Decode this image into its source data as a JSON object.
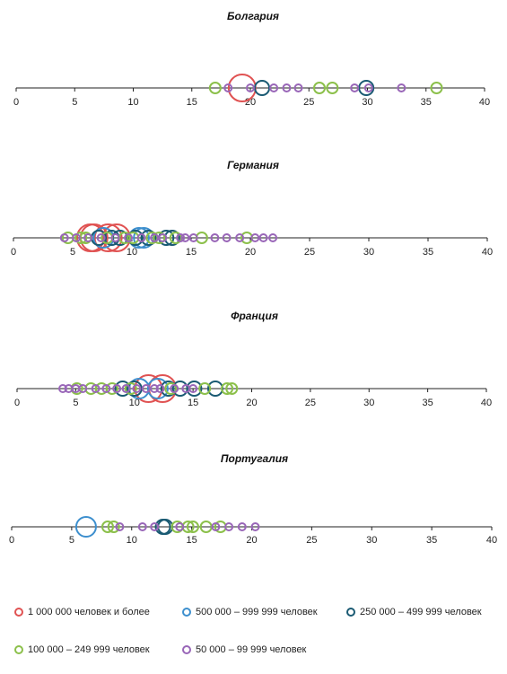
{
  "colors": {
    "c1m": "#e05252",
    "c500k": "#3d8fce",
    "c250k": "#1a5a73",
    "c100k": "#8cc04b",
    "c50k": "#9966b8"
  },
  "legend": [
    {
      "label": "1 000 000 человек и более",
      "color_key": "c1m"
    },
    {
      "label": "500 000 – 999 999 человек",
      "color_key": "c500k"
    },
    {
      "label": "250 000 – 499 999 человек",
      "color_key": "c250k"
    },
    {
      "label": "100 000 – 249 999 человек",
      "color_key": "c100k"
    },
    {
      "label": "50 000 – 99 999 человек",
      "color_key": "c50k"
    }
  ],
  "chart_data": [
    {
      "type": "scatter",
      "title": "Болгария",
      "xlim": [
        0,
        40
      ],
      "xticks": [
        0,
        5,
        10,
        15,
        20,
        25,
        30,
        35,
        40
      ],
      "points": [
        {
          "x": 19.3,
          "size_class": "c1m"
        },
        {
          "x": 21.0,
          "size_class": "c250k"
        },
        {
          "x": 29.9,
          "size_class": "c250k"
        },
        {
          "x": 17.0,
          "size_class": "c100k"
        },
        {
          "x": 25.9,
          "size_class": "c100k"
        },
        {
          "x": 27.0,
          "size_class": "c100k"
        },
        {
          "x": 35.9,
          "size_class": "c100k"
        },
        {
          "x": 18.1,
          "size_class": "c50k"
        },
        {
          "x": 20.0,
          "size_class": "c50k"
        },
        {
          "x": 22.0,
          "size_class": "c50k"
        },
        {
          "x": 23.1,
          "size_class": "c50k"
        },
        {
          "x": 24.1,
          "size_class": "c50k"
        },
        {
          "x": 28.9,
          "size_class": "c50k"
        },
        {
          "x": 30.1,
          "size_class": "c50k"
        },
        {
          "x": 32.9,
          "size_class": "c50k"
        }
      ]
    },
    {
      "type": "scatter",
      "title": "Германия",
      "xlim": [
        0,
        40
      ],
      "xticks": [
        0,
        5,
        10,
        15,
        20,
        25,
        30,
        35,
        40
      ],
      "points": [
        {
          "x": 6.5,
          "size_class": "c1m"
        },
        {
          "x": 6.8,
          "size_class": "c1m"
        },
        {
          "x": 8.0,
          "size_class": "c1m"
        },
        {
          "x": 8.7,
          "size_class": "c1m"
        },
        {
          "x": 7.6,
          "size_class": "c500k"
        },
        {
          "x": 10.6,
          "size_class": "c500k"
        },
        {
          "x": 11.0,
          "size_class": "c500k"
        },
        {
          "x": 7.2,
          "size_class": "c250k"
        },
        {
          "x": 8.3,
          "size_class": "c250k"
        },
        {
          "x": 9.0,
          "size_class": "c250k"
        },
        {
          "x": 10.3,
          "size_class": "c250k"
        },
        {
          "x": 11.4,
          "size_class": "c250k"
        },
        {
          "x": 12.9,
          "size_class": "c250k"
        },
        {
          "x": 13.4,
          "size_class": "c250k"
        },
        {
          "x": 4.6,
          "size_class": "c100k"
        },
        {
          "x": 5.7,
          "size_class": "c100k"
        },
        {
          "x": 6.1,
          "size_class": "c100k"
        },
        {
          "x": 7.9,
          "size_class": "c100k"
        },
        {
          "x": 9.4,
          "size_class": "c100k"
        },
        {
          "x": 10.1,
          "size_class": "c100k"
        },
        {
          "x": 11.7,
          "size_class": "c100k"
        },
        {
          "x": 12.3,
          "size_class": "c100k"
        },
        {
          "x": 13.7,
          "size_class": "c100k"
        },
        {
          "x": 15.9,
          "size_class": "c100k"
        },
        {
          "x": 19.7,
          "size_class": "c100k"
        },
        {
          "x": 4.3,
          "size_class": "c50k"
        },
        {
          "x": 5.3,
          "size_class": "c50k"
        },
        {
          "x": 6.3,
          "size_class": "c50k"
        },
        {
          "x": 7.4,
          "size_class": "c50k"
        },
        {
          "x": 8.6,
          "size_class": "c50k"
        },
        {
          "x": 9.7,
          "size_class": "c50k"
        },
        {
          "x": 10.8,
          "size_class": "c50k"
        },
        {
          "x": 11.9,
          "size_class": "c50k"
        },
        {
          "x": 12.6,
          "size_class": "c50k"
        },
        {
          "x": 14.1,
          "size_class": "c50k"
        },
        {
          "x": 14.5,
          "size_class": "c50k"
        },
        {
          "x": 15.2,
          "size_class": "c50k"
        },
        {
          "x": 17.0,
          "size_class": "c50k"
        },
        {
          "x": 18.0,
          "size_class": "c50k"
        },
        {
          "x": 19.1,
          "size_class": "c50k"
        },
        {
          "x": 20.4,
          "size_class": "c50k"
        },
        {
          "x": 21.1,
          "size_class": "c50k"
        },
        {
          "x": 21.9,
          "size_class": "c50k"
        }
      ]
    },
    {
      "type": "scatter",
      "title": "Франция",
      "xlim": [
        0,
        40
      ],
      "xticks": [
        0,
        5,
        10,
        15,
        20,
        25,
        30,
        35,
        40
      ],
      "points": [
        {
          "x": 11.2,
          "size_class": "c1m"
        },
        {
          "x": 12.4,
          "size_class": "c1m"
        },
        {
          "x": 10.4,
          "size_class": "c500k"
        },
        {
          "x": 12.0,
          "size_class": "c500k"
        },
        {
          "x": 9.0,
          "size_class": "c250k"
        },
        {
          "x": 10.0,
          "size_class": "c250k"
        },
        {
          "x": 12.9,
          "size_class": "c250k"
        },
        {
          "x": 13.9,
          "size_class": "c250k"
        },
        {
          "x": 15.1,
          "size_class": "c250k"
        },
        {
          "x": 16.9,
          "size_class": "c250k"
        },
        {
          "x": 5.1,
          "size_class": "c100k"
        },
        {
          "x": 6.3,
          "size_class": "c100k"
        },
        {
          "x": 7.2,
          "size_class": "c100k"
        },
        {
          "x": 8.1,
          "size_class": "c100k"
        },
        {
          "x": 9.7,
          "size_class": "c100k"
        },
        {
          "x": 13.1,
          "size_class": "c100k"
        },
        {
          "x": 16.0,
          "size_class": "c100k"
        },
        {
          "x": 17.9,
          "size_class": "c100k"
        },
        {
          "x": 18.3,
          "size_class": "c100k"
        },
        {
          "x": 3.9,
          "size_class": "c50k"
        },
        {
          "x": 4.4,
          "size_class": "c50k"
        },
        {
          "x": 5.0,
          "size_class": "c50k"
        },
        {
          "x": 5.6,
          "size_class": "c50k"
        },
        {
          "x": 6.7,
          "size_class": "c50k"
        },
        {
          "x": 7.6,
          "size_class": "c50k"
        },
        {
          "x": 8.5,
          "size_class": "c50k"
        },
        {
          "x": 9.3,
          "size_class": "c50k"
        },
        {
          "x": 10.2,
          "size_class": "c50k"
        },
        {
          "x": 11.0,
          "size_class": "c50k"
        },
        {
          "x": 11.7,
          "size_class": "c50k"
        },
        {
          "x": 12.2,
          "size_class": "c50k"
        },
        {
          "x": 13.4,
          "size_class": "c50k"
        },
        {
          "x": 14.4,
          "size_class": "c50k"
        },
        {
          "x": 15.0,
          "size_class": "c50k"
        }
      ]
    },
    {
      "type": "scatter",
      "title": "Португалия",
      "xlim": [
        0,
        40
      ],
      "xticks": [
        0,
        5,
        10,
        15,
        20,
        25,
        30,
        35,
        40
      ],
      "points": [
        {
          "x": 6.2,
          "size_class": "c500k"
        },
        {
          "x": 12.6,
          "size_class": "c250k"
        },
        {
          "x": 12.8,
          "size_class": "c250k"
        },
        {
          "x": 8.0,
          "size_class": "c100k"
        },
        {
          "x": 8.5,
          "size_class": "c100k"
        },
        {
          "x": 13.8,
          "size_class": "c100k"
        },
        {
          "x": 14.7,
          "size_class": "c100k"
        },
        {
          "x": 15.1,
          "size_class": "c100k"
        },
        {
          "x": 16.2,
          "size_class": "c100k"
        },
        {
          "x": 17.4,
          "size_class": "c100k"
        },
        {
          "x": 9.0,
          "size_class": "c50k"
        },
        {
          "x": 10.9,
          "size_class": "c50k"
        },
        {
          "x": 11.9,
          "size_class": "c50k"
        },
        {
          "x": 14.0,
          "size_class": "c50k"
        },
        {
          "x": 17.0,
          "size_class": "c50k"
        },
        {
          "x": 18.1,
          "size_class": "c50k"
        },
        {
          "x": 19.2,
          "size_class": "c50k"
        },
        {
          "x": 20.3,
          "size_class": "c50k"
        }
      ]
    }
  ]
}
